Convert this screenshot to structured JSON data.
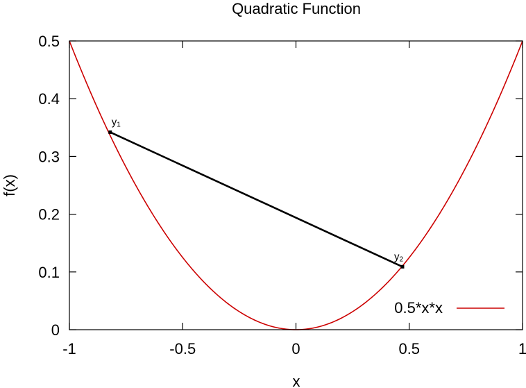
{
  "chart_data": {
    "type": "line",
    "title": "Quadratic Function",
    "xlabel": "x",
    "ylabel": "f(x)",
    "xlim": [
      -1,
      1
    ],
    "ylim": [
      0,
      0.5
    ],
    "x_ticks": [
      {
        "value": -1,
        "label": "-1"
      },
      {
        "value": -0.5,
        "label": "-0.5"
      },
      {
        "value": 0,
        "label": "0"
      },
      {
        "value": 0.5,
        "label": "0.5"
      },
      {
        "value": 1,
        "label": "1"
      }
    ],
    "y_ticks": [
      {
        "value": 0,
        "label": "0"
      },
      {
        "value": 0.1,
        "label": "0.1"
      },
      {
        "value": 0.2,
        "label": "0.2"
      },
      {
        "value": 0.3,
        "label": "0.3"
      },
      {
        "value": 0.4,
        "label": "0.4"
      },
      {
        "value": 0.5,
        "label": "0.5"
      }
    ],
    "grid": false,
    "legend_position": "bottom-right",
    "series": [
      {
        "name": "0.5*x*x",
        "type": "function",
        "expression": "0.5*x*x",
        "color": "#cc0000",
        "x_range": [
          -1,
          1
        ]
      }
    ],
    "segment": {
      "color": "#000000",
      "points": [
        {
          "label": "y",
          "subscript": "1",
          "x": -0.82,
          "y": 0.342
        },
        {
          "label": "y",
          "subscript": "2",
          "x": 0.47,
          "y": 0.109
        }
      ]
    }
  }
}
